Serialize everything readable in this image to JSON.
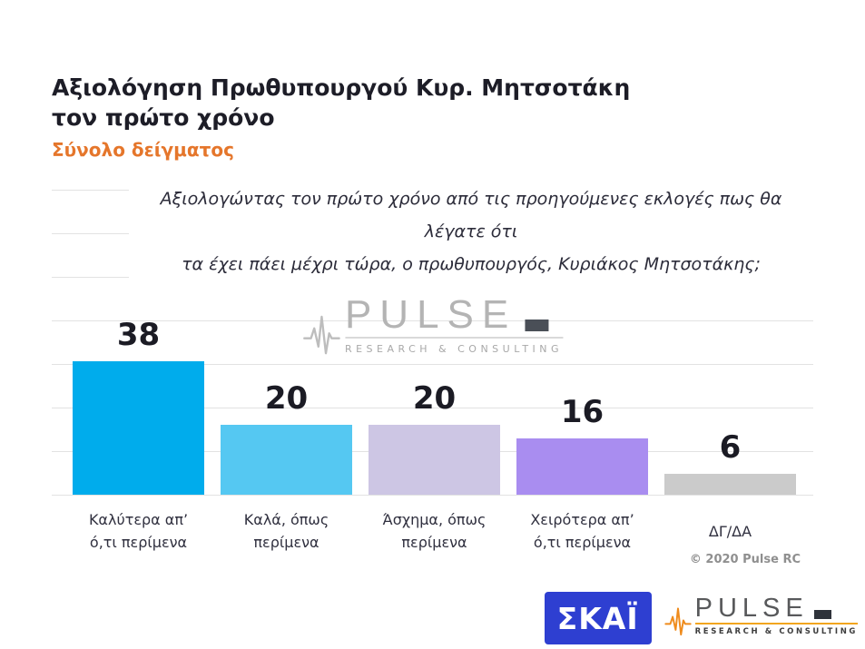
{
  "header": {
    "title_line1": "Αξιολόγηση Πρωθυπουργού Κυρ. Μητσοτάκη",
    "title_line2": "τον πρώτο χρόνο",
    "subtitle": "Σύνολο δείγματος",
    "subtitle_color": "#e5762b"
  },
  "question": {
    "line1": "Αξιολογώντας τον πρώτο χρόνο από τις προηγούμενες εκλογές πως θα λέγατε ότι",
    "line2": "τα έχει πάει μέχρι τώρα, ο πρωθυπουργός, Κυριάκος Μητσοτάκης;"
  },
  "chart_data": {
    "type": "bar",
    "title": "Αξιολόγηση Πρωθυπουργού Κυρ. Μητσοτάκη τον πρώτο χρόνο",
    "subtitle": "Σύνολο δείγματος",
    "question": "Αξιολογώντας τον πρώτο χρόνο από τις προηγούμενες εκλογές πως θα λέγατε ότι τα έχει πάει μέχρι τώρα, ο πρωθυπουργός, Κυριάκος Μητσοτάκης;",
    "categories": [
      "Καλύτερα απ’ ό,τι περίμενα",
      "Καλά, όπως περίμενα",
      "Άσχημα, όπως περίμενα",
      "Χειρότερα απ’ ό,τι περίμενα",
      "ΔΓ/ΔΑ"
    ],
    "categories_lines": [
      [
        "Καλύτερα απ’",
        "ό,τι περίμενα"
      ],
      [
        "Καλά, όπως",
        "περίμενα"
      ],
      [
        "Άσχημα, όπως",
        "περίμενα"
      ],
      [
        "Χειρότερα απ’",
        "ό,τι περίμενα"
      ],
      [
        "ΔΓ/ΔΑ"
      ]
    ],
    "values": [
      38,
      20,
      20,
      16,
      6
    ],
    "bar_colors": [
      "#00acec",
      "#55c8f2",
      "#cdc6e4",
      "#a98df0",
      "#cbcbcb"
    ],
    "value_labels_shown": true,
    "legend": false,
    "gridlines": "horizontal",
    "source": "© 2020 Pulse RC"
  },
  "watermark": {
    "brand": "PULSE",
    "tagline": "RESEARCH & CONSULTING"
  },
  "footer": {
    "copyright": "© 2020 Pulse RC",
    "skai_label": "ΣΚΑΪ",
    "pulse_brand": "PULSE",
    "pulse_tagline": "RESEARCH & CONSULTING"
  }
}
